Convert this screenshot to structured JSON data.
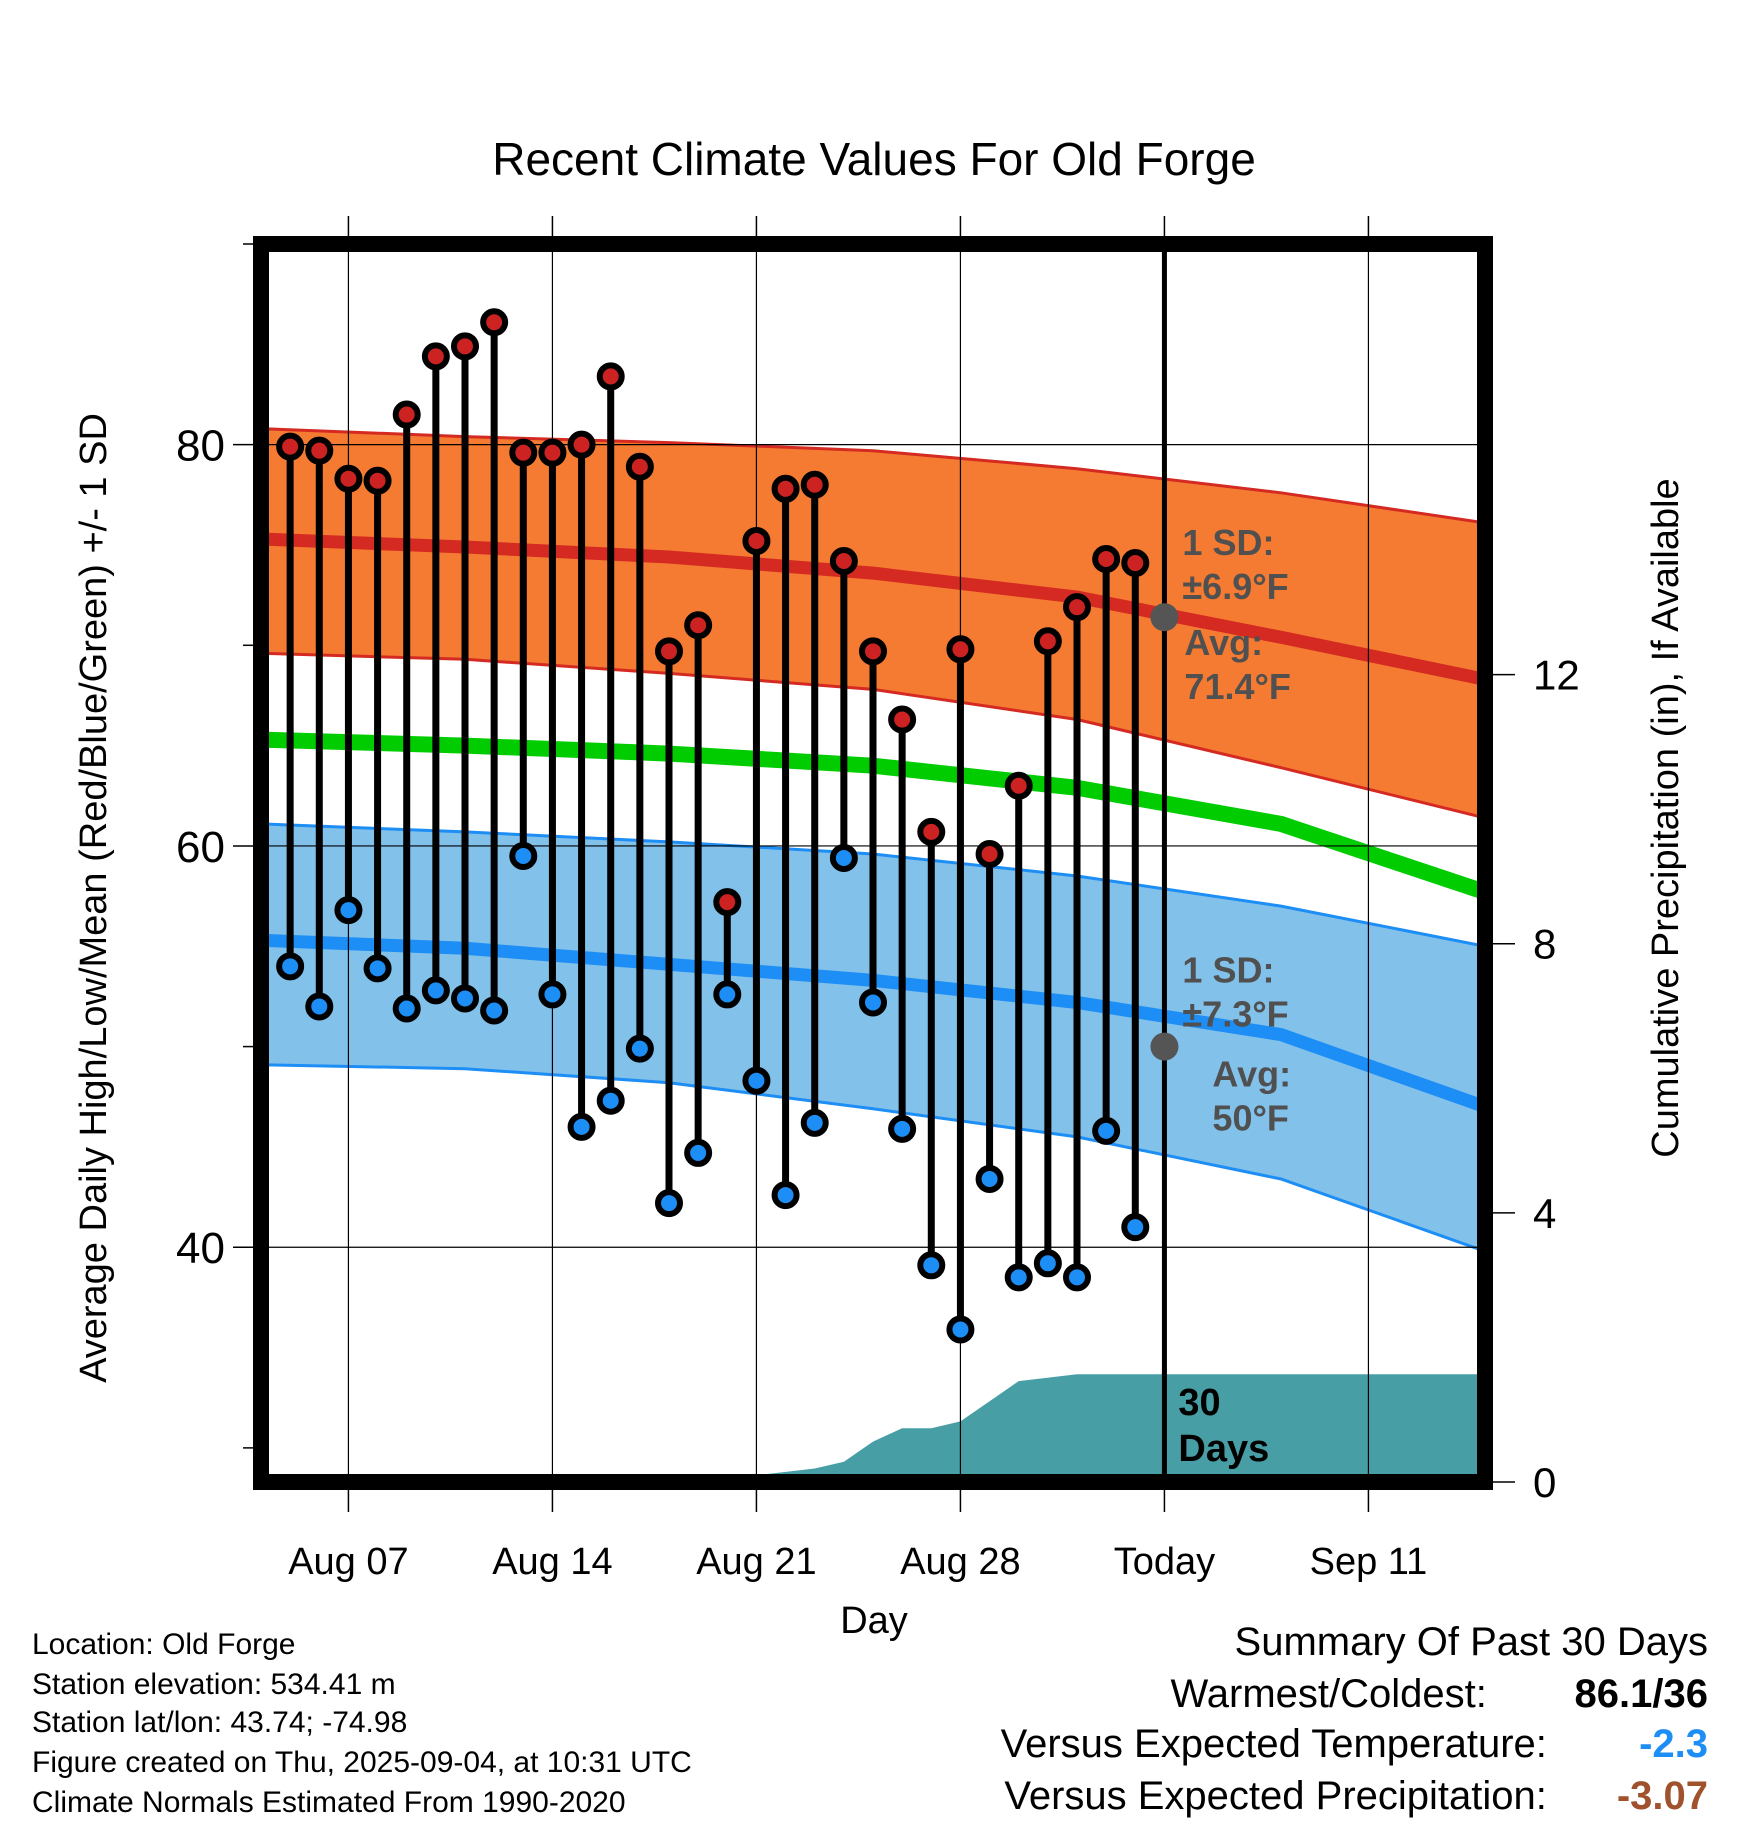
{
  "chart_data": {
    "type": "line",
    "title": "Recent Climate Values For Old Forge",
    "xlabel": "Day",
    "ylabel": "Average Daily High/Low/Mean (Red/Blue/Green) +/- 1 SD",
    "y2label": "Cumulative Precipitation (in), If Available",
    "x_range": [
      0,
      42
    ],
    "x_ticks": [
      {
        "day": 3,
        "label": "Aug 07"
      },
      {
        "day": 10,
        "label": "Aug 14"
      },
      {
        "day": 17,
        "label": "Aug 21"
      },
      {
        "day": 24,
        "label": "Aug 28"
      },
      {
        "day": 31,
        "label": "Today"
      },
      {
        "day": 38,
        "label": "Sep 11"
      }
    ],
    "ylim": [
      28.3,
      90
    ],
    "y_ticks": [
      40,
      60,
      80
    ],
    "y2lim": [
      0,
      18.4
    ],
    "y2_ticks": [
      0,
      4,
      8,
      12
    ],
    "today_day": 31,
    "today_label": "30 Days",
    "observed_days": [
      1,
      2,
      3,
      4,
      5,
      6,
      7,
      8,
      9,
      10,
      11,
      12,
      13,
      14,
      15,
      16,
      17,
      18,
      19,
      20,
      21,
      22,
      23,
      24,
      25,
      26,
      27,
      28,
      29,
      30
    ],
    "observed_high": [
      79.9,
      79.7,
      78.3,
      78.2,
      81.5,
      84.4,
      84.9,
      86.1,
      79.6,
      79.6,
      80.0,
      83.4,
      78.9,
      69.7,
      71.0,
      57.2,
      75.2,
      77.8,
      78.0,
      74.2,
      69.7,
      66.3,
      60.7,
      69.8,
      59.6,
      63.0,
      70.2,
      71.9,
      74.3,
      74.1
    ],
    "observed_low": [
      54.0,
      52.0,
      56.8,
      53.9,
      51.9,
      52.8,
      52.4,
      51.8,
      59.5,
      52.6,
      46.0,
      47.3,
      49.9,
      42.2,
      44.7,
      52.6,
      48.3,
      42.6,
      46.2,
      59.4,
      52.2,
      45.9,
      39.1,
      35.9,
      43.4,
      38.5,
      39.2,
      38.5,
      45.8,
      41.0
    ],
    "normal_days": [
      0,
      7,
      14,
      21,
      28,
      35,
      42
    ],
    "normal_high": [
      75.3,
      74.9,
      74.4,
      73.6,
      72.4,
      70.4,
      68.3
    ],
    "normal_high_upper": [
      80.8,
      80.4,
      80.1,
      79.7,
      78.8,
      77.6,
      76.1
    ],
    "normal_high_lower": [
      69.6,
      69.3,
      68.6,
      67.8,
      66.3,
      63.9,
      61.4
    ],
    "normal_mean": [
      65.3,
      65.0,
      64.6,
      64.0,
      62.9,
      61.1,
      57.7
    ],
    "normal_low": [
      55.3,
      54.9,
      54.1,
      53.3,
      52.2,
      50.6,
      47.0
    ],
    "normal_low_upper": [
      61.1,
      60.7,
      60.2,
      59.6,
      58.5,
      57.0,
      55.0
    ],
    "normal_low_lower": [
      49.1,
      48.9,
      48.2,
      46.9,
      45.5,
      43.4,
      39.8
    ],
    "precip_days": [
      16,
      17,
      19,
      20,
      21,
      22,
      23,
      24,
      25,
      26,
      28,
      31,
      42
    ],
    "precip_cum": [
      0.0,
      0.1,
      0.2,
      0.3,
      0.6,
      0.8,
      0.8,
      0.9,
      1.2,
      1.5,
      1.6,
      1.6,
      1.6
    ],
    "annotations": [
      {
        "day": 31,
        "value": 71.4,
        "lines": [
          "Avg:",
          "71.4°F"
        ]
      },
      {
        "day": 31,
        "value": 50,
        "lines": [
          "Avg:",
          "50°F"
        ]
      },
      {
        "lines": [
          "1 SD:",
          "±6.9°F"
        ]
      },
      {
        "lines": [
          "1 SD:",
          "±7.3°F"
        ]
      }
    ],
    "colors": {
      "high_band": "#f47b31",
      "high_line": "#d42a22",
      "low_band": "#82c1ea",
      "low_line": "#1d8ef5",
      "mean_line": "#00cc00",
      "precip": "#479fa5",
      "high_marker": "#cc2222",
      "low_marker": "#1d8ef5",
      "annotation_text": "#505050"
    },
    "legend": "none",
    "grid": true
  },
  "info": {
    "location": "Location: Old Forge",
    "elevation": "Station elevation: 534.41 m",
    "latlon": "Station lat/lon: 43.74; -74.98",
    "created": "Figure created on Thu, 2025-09-04, at 10:31 UTC",
    "normals": "Climate Normals Estimated From 1990-2020"
  },
  "summary": {
    "heading": "Summary Of Past 30 Days",
    "warmest_label": "Warmest/Coldest:",
    "warmest_value": "86.1/36",
    "temp_label": "Versus Expected Temperature:",
    "temp_value": "-2.3",
    "temp_color": "#1d8ef5",
    "precip_label": "Versus Expected Precipitation:",
    "precip_value": "-3.07",
    "precip_color": "#a0522d"
  }
}
